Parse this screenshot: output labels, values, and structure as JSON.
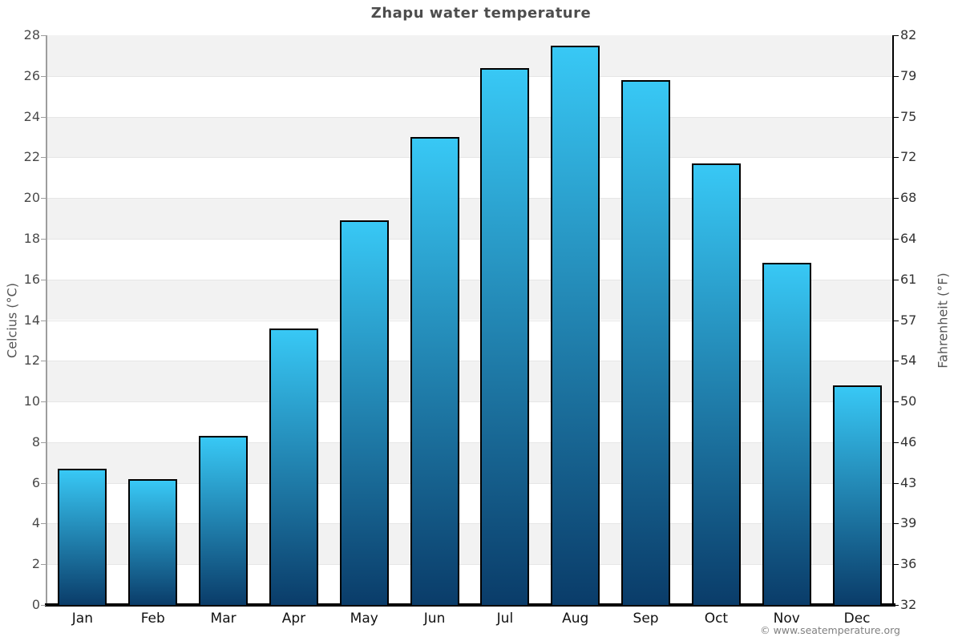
{
  "title": "Zhapu water temperature",
  "attribution": "© www.seatemperature.org",
  "chart_data": {
    "type": "bar",
    "title": "Zhapu water temperature",
    "categories": [
      "Jan",
      "Feb",
      "Mar",
      "Apr",
      "May",
      "Jun",
      "Jul",
      "Aug",
      "Sep",
      "Oct",
      "Nov",
      "Dec"
    ],
    "values": [
      6.7,
      6.2,
      8.3,
      13.6,
      18.9,
      23.0,
      26.4,
      27.5,
      25.8,
      21.7,
      16.8,
      10.8
    ],
    "unit": "°C",
    "xlabel": "",
    "ylabel_left": "Celcius (°C)",
    "ylabel_right": "Fahrenheit (°F)",
    "ylim_left": [
      0,
      28
    ],
    "ylim_right": [
      32,
      82
    ],
    "yticks_left": [
      28,
      26,
      24,
      22,
      20,
      18,
      16,
      14,
      12,
      10,
      8,
      6,
      4,
      2,
      0
    ],
    "yticks_right": [
      82,
      79,
      75,
      72,
      68,
      64,
      61,
      57,
      54,
      50,
      46,
      43,
      39,
      36,
      32
    ],
    "legend": "none",
    "grid": "alternating horizontal bands every 2°C",
    "colors": {
      "bar_gradient_top": "#38c8f5",
      "bar_gradient_bottom": "#0a3c69",
      "bar_border": "#000000",
      "band_fill": "#f2f2f2",
      "band_alt_fill": "#ffffff",
      "gridline": "#e6e6e6",
      "axis_left": "#9d9d9d",
      "axis_right": "#000000",
      "axis_bottom": "#000000",
      "title_color": "#4d4d4d",
      "tick_label_color": "#4a4a4a",
      "attribution_color": "#808080"
    }
  }
}
